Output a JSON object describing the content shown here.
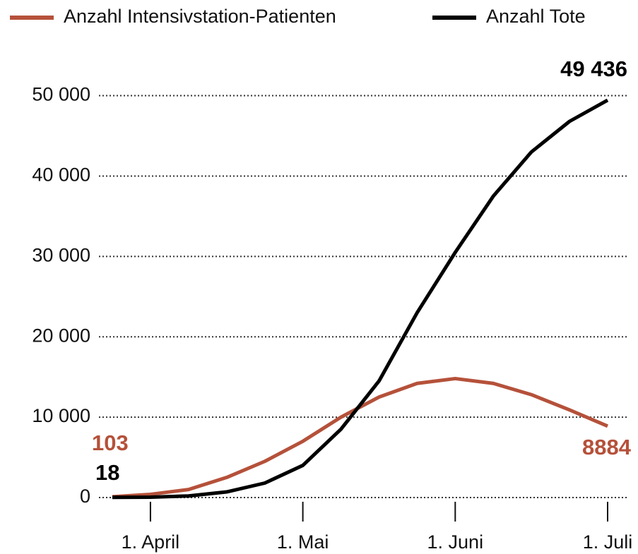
{
  "chart_data": {
    "type": "line",
    "categories": [
      null,
      "1. April",
      null,
      null,
      null,
      "1. Mai",
      null,
      null,
      null,
      "1. Juni",
      null,
      null,
      null,
      "1. Juli"
    ],
    "series": [
      {
        "name": "Anzahl Intensivstation-Patienten",
        "color": "#b5513a",
        "values": [
          103,
          400,
          1000,
          2500,
          4500,
          7000,
          10000,
          12500,
          14200,
          14800,
          14200,
          12800,
          10900,
          8884
        ],
        "value_labels": [
          "103",
          null,
          null,
          null,
          null,
          null,
          null,
          null,
          null,
          null,
          null,
          null,
          null,
          "8884"
        ]
      },
      {
        "name": "Anzahl Tote",
        "color": "#000000",
        "values": [
          18,
          40,
          200,
          700,
          1800,
          4000,
          8500,
          14500,
          23000,
          30500,
          37500,
          43000,
          46800,
          49436
        ],
        "value_labels": [
          "18",
          null,
          null,
          null,
          null,
          null,
          null,
          null,
          null,
          null,
          null,
          null,
          null,
          "49 436"
        ]
      }
    ],
    "ylim": [
      0,
      54000
    ],
    "yticks": [
      0,
      {
        "value": 10000,
        "label": "10 000"
      },
      {
        "value": 20000,
        "label": "20 000"
      },
      {
        "value": 30000,
        "label": "30 000"
      },
      {
        "value": 40000,
        "label": "40 000"
      },
      {
        "value": 50000,
        "label": "50 000"
      }
    ],
    "grid": true
  }
}
